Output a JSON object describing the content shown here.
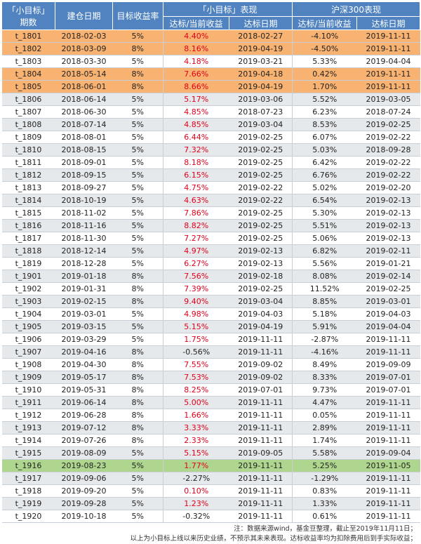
{
  "header": {
    "period_top": "「小目标」",
    "period_bottom": "期数",
    "build_date": "建仓日期",
    "target_rate": "目标收益率",
    "group_fund": "「小目标」表现",
    "group_index": "沪深300表现",
    "return_label": "达标/当前收益",
    "date_label": "达标日期"
  },
  "rows": [
    {
      "id": "t_1801",
      "build": "2018-02-03",
      "target": "5%",
      "fund_ret": "4.40%",
      "fund_date": "2018-02-27",
      "idx_ret": "-4.10%",
      "idx_date": "2019-11-11",
      "hl": "orange",
      "pos": true
    },
    {
      "id": "t_1802",
      "build": "2018-03-09",
      "target": "8%",
      "fund_ret": "8.16%",
      "fund_date": "2019-04-19",
      "idx_ret": "-4.50%",
      "idx_date": "2019-11-11",
      "hl": "orange",
      "pos": true
    },
    {
      "id": "t_1803",
      "build": "2018-03-30",
      "target": "5%",
      "fund_ret": "4.18%",
      "fund_date": "2019-03-21",
      "idx_ret": "5.33%",
      "idx_date": "2019-04-04",
      "hl": "",
      "pos": true
    },
    {
      "id": "t_1804",
      "build": "2018-05-14",
      "target": "8%",
      "fund_ret": "7.66%",
      "fund_date": "2019-04-18",
      "idx_ret": "0.42%",
      "idx_date": "2019-11-11",
      "hl": "orange",
      "pos": true
    },
    {
      "id": "t_1805",
      "build": "2018-06-01",
      "target": "8%",
      "fund_ret": "8.66%",
      "fund_date": "2019-04-19",
      "idx_ret": "1.70%",
      "idx_date": "2019-11-11",
      "hl": "orange",
      "pos": true
    },
    {
      "id": "t_1806",
      "build": "2018-06-14",
      "target": "5%",
      "fund_ret": "5.17%",
      "fund_date": "2019-03-06",
      "idx_ret": "5.52%",
      "idx_date": "2019-03-05",
      "hl": "",
      "pos": true
    },
    {
      "id": "t_1807",
      "build": "2018-06-30",
      "target": "5%",
      "fund_ret": "4.85%",
      "fund_date": "2018-07-23",
      "idx_ret": "6.23%",
      "idx_date": "2018-07-24",
      "hl": "",
      "pos": true
    },
    {
      "id": "t_1808",
      "build": "2018-07-14",
      "target": "5%",
      "fund_ret": "4.85%",
      "fund_date": "2019-03-04",
      "idx_ret": "8.53%",
      "idx_date": "2019-02-25",
      "hl": "",
      "pos": true
    },
    {
      "id": "t_1809",
      "build": "2018-08-01",
      "target": "5%",
      "fund_ret": "6.44%",
      "fund_date": "2019-02-25",
      "idx_ret": "6.07%",
      "idx_date": "2019-02-22",
      "hl": "",
      "pos": true
    },
    {
      "id": "t_1810",
      "build": "2018-08-15",
      "target": "5%",
      "fund_ret": "7.32%",
      "fund_date": "2019-02-25",
      "idx_ret": "5.03%",
      "idx_date": "2018-09-28",
      "hl": "",
      "pos": true
    },
    {
      "id": "t_1811",
      "build": "2018-09-01",
      "target": "5%",
      "fund_ret": "8.18%",
      "fund_date": "2019-02-25",
      "idx_ret": "6.42%",
      "idx_date": "2019-02-22",
      "hl": "",
      "pos": true
    },
    {
      "id": "t_1812",
      "build": "2018-09-15",
      "target": "5%",
      "fund_ret": "6.15%",
      "fund_date": "2019-02-25",
      "idx_ret": "6.76%",
      "idx_date": "2019-02-22",
      "hl": "",
      "pos": true
    },
    {
      "id": "t_1813",
      "build": "2018-09-27",
      "target": "5%",
      "fund_ret": "4.75%",
      "fund_date": "2019-02-22",
      "idx_ret": "5.02%",
      "idx_date": "2019-02-20",
      "hl": "",
      "pos": true
    },
    {
      "id": "t_1814",
      "build": "2018-10-19",
      "target": "5%",
      "fund_ret": "4.63%",
      "fund_date": "2019-02-22",
      "idx_ret": "6.54%",
      "idx_date": "2019-02-13",
      "hl": "",
      "pos": true
    },
    {
      "id": "t_1815",
      "build": "2018-11-02",
      "target": "5%",
      "fund_ret": "7.86%",
      "fund_date": "2019-02-25",
      "idx_ret": "5.30%",
      "idx_date": "2019-02-13",
      "hl": "",
      "pos": true
    },
    {
      "id": "t_1816",
      "build": "2018-11-16",
      "target": "5%",
      "fund_ret": "8.82%",
      "fund_date": "2019-02-25",
      "idx_ret": "5.51%",
      "idx_date": "2019-02-13",
      "hl": "",
      "pos": true
    },
    {
      "id": "t_1817",
      "build": "2018-11-30",
      "target": "5%",
      "fund_ret": "7.27%",
      "fund_date": "2019-02-25",
      "idx_ret": "5.06%",
      "idx_date": "2019-02-13",
      "hl": "",
      "pos": true
    },
    {
      "id": "t_1818",
      "build": "2018-12-14",
      "target": "5%",
      "fund_ret": "4.97%",
      "fund_date": "2019-02-13",
      "idx_ret": "6.82%",
      "idx_date": "2019-02-11",
      "hl": "",
      "pos": true
    },
    {
      "id": "t_1819",
      "build": "2018-12-28",
      "target": "5%",
      "fund_ret": "6.27%",
      "fund_date": "2019-02-13",
      "idx_ret": "5.56%",
      "idx_date": "2019-01-21",
      "hl": "",
      "pos": true
    },
    {
      "id": "t_1901",
      "build": "2019-01-18",
      "target": "8%",
      "fund_ret": "7.56%",
      "fund_date": "2019-02-18",
      "idx_ret": "8.08%",
      "idx_date": "2019-02-14",
      "hl": "",
      "pos": true
    },
    {
      "id": "t_1902",
      "build": "2019-01-31",
      "target": "8%",
      "fund_ret": "7.39%",
      "fund_date": "2019-02-25",
      "idx_ret": "11.52%",
      "idx_date": "2019-02-25",
      "hl": "",
      "pos": true
    },
    {
      "id": "t_1903",
      "build": "2019-02-15",
      "target": "8%",
      "fund_ret": "9.40%",
      "fund_date": "2019-03-04",
      "idx_ret": "8.85%",
      "idx_date": "2019-03-01",
      "hl": "",
      "pos": true
    },
    {
      "id": "t_1904",
      "build": "2019-03-01",
      "target": "5%",
      "fund_ret": "4.98%",
      "fund_date": "2019-04-03",
      "idx_ret": "5.18%",
      "idx_date": "2019-04-03",
      "hl": "",
      "pos": true
    },
    {
      "id": "t_1905",
      "build": "2019-03-15",
      "target": "5%",
      "fund_ret": "5.15%",
      "fund_date": "2019-04-19",
      "idx_ret": "5.91%",
      "idx_date": "2019-04-04",
      "hl": "",
      "pos": true
    },
    {
      "id": "t_1906",
      "build": "2019-03-29",
      "target": "5%",
      "fund_ret": "1.75%",
      "fund_date": "2019-11-11",
      "idx_ret": "-2.87%",
      "idx_date": "2019-11-11",
      "hl": "",
      "pos": true
    },
    {
      "id": "t_1907",
      "build": "2019-04-16",
      "target": "8%",
      "fund_ret": "-0.56%",
      "fund_date": "2019-11-11",
      "idx_ret": "-4.16%",
      "idx_date": "2019-11-11",
      "hl": "",
      "pos": false
    },
    {
      "id": "t_1908",
      "build": "2019-04-30",
      "target": "8%",
      "fund_ret": "7.55%",
      "fund_date": "2019-09-02",
      "idx_ret": "8.49%",
      "idx_date": "2019-09-09",
      "hl": "",
      "pos": true
    },
    {
      "id": "t_1909",
      "build": "2019-05-17",
      "target": "8%",
      "fund_ret": "7.53%",
      "fund_date": "2019-09-02",
      "idx_ret": "8.33%",
      "idx_date": "2019-07-01",
      "hl": "",
      "pos": true
    },
    {
      "id": "t_1910",
      "build": "2019-05-31",
      "target": "8%",
      "fund_ret": "8.25%",
      "fund_date": "2019-07-01",
      "idx_ret": "9.73%",
      "idx_date": "2019-07-01",
      "hl": "",
      "pos": true
    },
    {
      "id": "t_1911",
      "build": "2019-06-14",
      "target": "8%",
      "fund_ret": "5.00%",
      "fund_date": "2019-11-11",
      "idx_ret": "4.47%",
      "idx_date": "2019-11-11",
      "hl": "",
      "pos": true
    },
    {
      "id": "t_1912",
      "build": "2019-06-28",
      "target": "8%",
      "fund_ret": "1.66%",
      "fund_date": "2019-11-11",
      "idx_ret": "0.05%",
      "idx_date": "2019-11-11",
      "hl": "",
      "pos": true
    },
    {
      "id": "t_1913",
      "build": "2019-07-12",
      "target": "8%",
      "fund_ret": "3.33%",
      "fund_date": "2019-11-11",
      "idx_ret": "2.89%",
      "idx_date": "2019-11-11",
      "hl": "",
      "pos": true
    },
    {
      "id": "t_1914",
      "build": "2019-07-26",
      "target": "8%",
      "fund_ret": "2.33%",
      "fund_date": "2019-11-11",
      "idx_ret": "1.74%",
      "idx_date": "2019-11-11",
      "hl": "",
      "pos": true
    },
    {
      "id": "t_1915",
      "build": "2019-08-09",
      "target": "5%",
      "fund_ret": "5.15%",
      "fund_date": "2019-09-05",
      "idx_ret": "5.58%",
      "idx_date": "2019-09-04",
      "hl": "",
      "pos": true
    },
    {
      "id": "t_1916",
      "build": "2019-08-23",
      "target": "5%",
      "fund_ret": "1.77%",
      "fund_date": "2019-11-11",
      "idx_ret": "5.25%",
      "idx_date": "2019-11-05",
      "hl": "green",
      "pos": true
    },
    {
      "id": "t_1917",
      "build": "2019-09-06",
      "target": "5%",
      "fund_ret": "-2.27%",
      "fund_date": "2019-11-11",
      "idx_ret": "-1.29%",
      "idx_date": "2019-11-11",
      "hl": "",
      "pos": false
    },
    {
      "id": "t_1918",
      "build": "2019-09-20",
      "target": "5%",
      "fund_ret": "0.10%",
      "fund_date": "2019-11-11",
      "idx_ret": "0.83%",
      "idx_date": "2019-11-11",
      "hl": "",
      "pos": true
    },
    {
      "id": "t_1919",
      "build": "2019-09-28",
      "target": "5%",
      "fund_ret": "1.23%",
      "fund_date": "2019-11-11",
      "idx_ret": "1.33%",
      "idx_date": "2019-11-11",
      "hl": "",
      "pos": true
    },
    {
      "id": "t_1920",
      "build": "2019-10-18",
      "target": "5%",
      "fund_ret": "-0.32%",
      "fund_date": "2019-11-11",
      "idx_ret": "0.61%",
      "idx_date": "2019-11-11",
      "hl": "",
      "pos": false
    }
  ],
  "notes": {
    "line1": "注：数据来源wind，基金豆整理，截止至2019年11月11日；",
    "line2": "以上为小目标上线以来历史业绩，不预示其未来表现。达标收益率均为扣除费用后到手实际收益；"
  }
}
